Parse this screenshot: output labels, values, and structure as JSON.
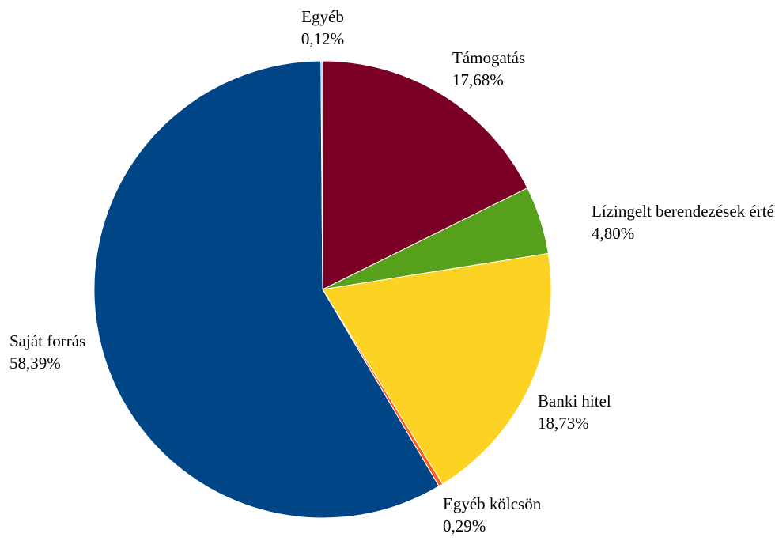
{
  "chart_data": {
    "type": "pie",
    "title": "",
    "slices": [
      {
        "name": "Támogatás",
        "value": 17.68,
        "label": "17,68%",
        "color": "#7a0026"
      },
      {
        "name": "Lízingelt berendezések értéke",
        "value": 4.8,
        "label": "4,80%",
        "color": "#56a01c"
      },
      {
        "name": "Banki hitel",
        "value": 18.73,
        "label": "18,73%",
        "color": "#fdd323"
      },
      {
        "name": "Egyéb kölcsön",
        "value": 0.29,
        "label": "0,29%",
        "color": "#ff5b1a"
      },
      {
        "name": "Saját forrás",
        "value": 58.39,
        "label": "58,39%",
        "color": "#004687"
      },
      {
        "name": "Egyéb",
        "value": 0.12,
        "label": "0,12%",
        "color": "#8fc3ef"
      }
    ],
    "start_angle_deg": 0,
    "direction": "clockwise",
    "legend": "none"
  }
}
